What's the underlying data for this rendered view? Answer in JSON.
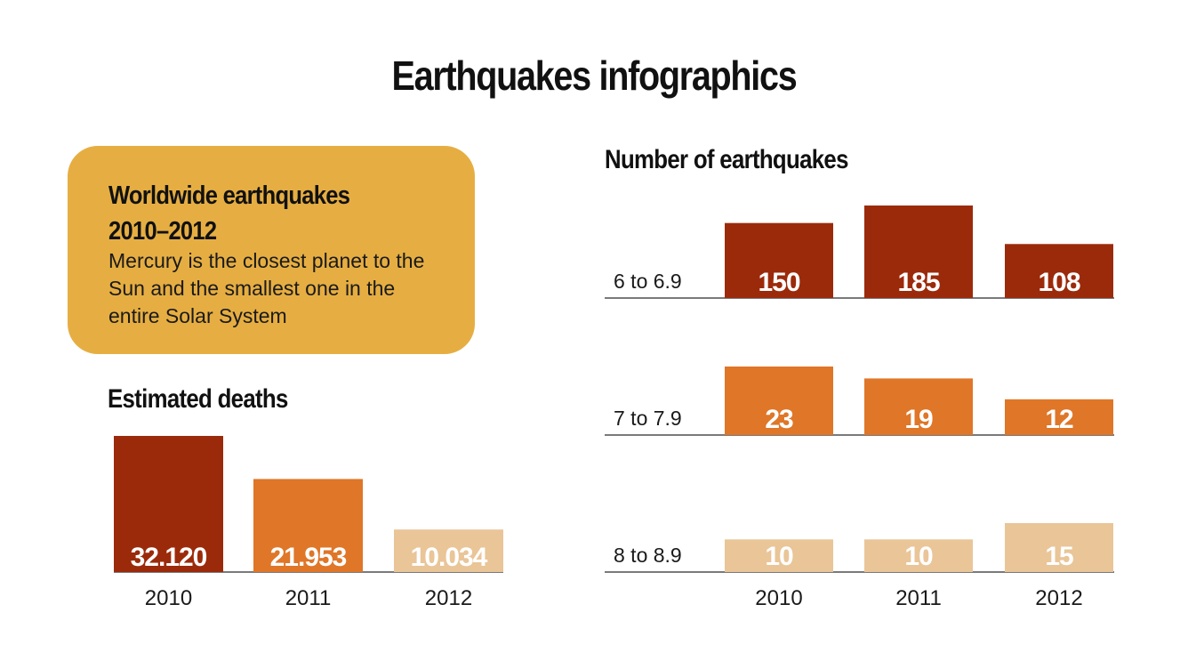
{
  "page": {
    "title": "Earthquakes infographics"
  },
  "info_card": {
    "heading": "Worldwide earthquakes\n2010–2012",
    "body": "Mercury is the closest planet to the Sun and the smallest one in the entire Solar System"
  },
  "colors": {
    "dark": "#9B2A0B",
    "mid": "#DF7628",
    "light": "#E9C598",
    "card": "#E6AE42",
    "baseline": "#7a7a7a"
  },
  "chart_data": [
    {
      "type": "bar",
      "title": "Estimated deaths",
      "categories": [
        "2010",
        "2011",
        "2012"
      ],
      "values": [
        32120,
        21953,
        10034
      ],
      "value_labels": [
        "32.120",
        "21.953",
        "10.034"
      ],
      "bar_colors": [
        "dark",
        "mid",
        "light"
      ],
      "ylim": [
        0,
        32120
      ]
    },
    {
      "type": "bar",
      "title": "Number of earthquakes",
      "categories": [
        "2010",
        "2011",
        "2012"
      ],
      "series": [
        {
          "name": "6 to 6.9",
          "values": [
            150,
            185,
            108
          ],
          "color": "dark"
        },
        {
          "name": "7 to 7.9",
          "values": [
            23,
            19,
            12
          ],
          "color": "mid"
        },
        {
          "name": "8 to 8.9",
          "values": [
            10,
            10,
            15
          ],
          "color": "light"
        }
      ]
    }
  ]
}
